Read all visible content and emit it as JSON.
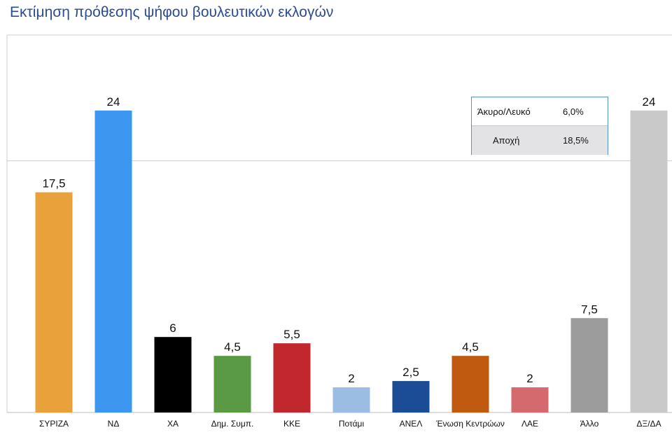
{
  "title": "Εκτίμηση πρόθεσης ψήφου βουλευτικών εκλογών",
  "legend": {
    "rows": [
      {
        "label": "Άκυρο/Λευκό",
        "value": "6,0%"
      },
      {
        "label": "Αποχή",
        "value": "18,5%"
      }
    ]
  },
  "chart_data": {
    "type": "bar",
    "title": "Εκτίμηση πρόθεσης ψήφου βουλευτικών εκλογών",
    "xlabel": "",
    "ylabel": "",
    "ylim": [
      0,
      30
    ],
    "grid": true,
    "categories": [
      "ΣΥΡΙΖΑ",
      "ΝΔ",
      "ΧΑ",
      "Δημ. Συμπ.",
      "ΚΚΕ",
      "Ποτάμι",
      "ΑΝΕΛ",
      "Ένωση Κεντρώων",
      "ΛΑΕ",
      "Άλλο",
      "ΔΞ/ΔΑ"
    ],
    "values": [
      17.5,
      24,
      6,
      4.5,
      5.5,
      2,
      2.5,
      4.5,
      2,
      7.5,
      24
    ],
    "value_labels": [
      "17,5",
      "24",
      "6",
      "4,5",
      "5,5",
      "2",
      "2,5",
      "4,5",
      "2",
      "7,5",
      "24"
    ],
    "colors": [
      "#e9a23b",
      "#3d96ef",
      "#000000",
      "#5a9a44",
      "#c0282d",
      "#9bbde3",
      "#1a4d96",
      "#bf5a10",
      "#d46a6e",
      "#9c9c9c",
      "#c9c9c9"
    ]
  }
}
